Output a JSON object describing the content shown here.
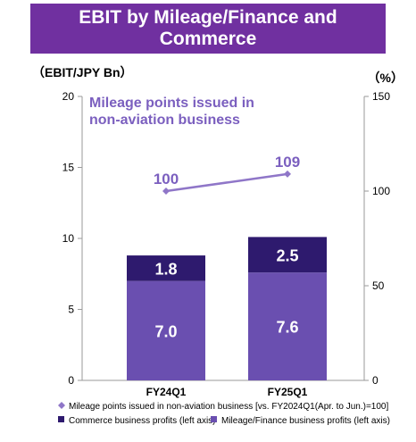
{
  "title": "EBIT by Mileage/Finance and Commerce",
  "colors": {
    "banner": "#7030a0",
    "mileage_finance": "#6a4fb0",
    "commerce": "#2e1a6e",
    "line": "#8f76c8",
    "annotation": "#7b5fbf",
    "axis": "#9a9a9a"
  },
  "chart_data": {
    "type": "bar",
    "stacked": true,
    "title": "EBIT by Mileage/Finance and Commerce",
    "categories": [
      "FY24Q1",
      "FY25Q1"
    ],
    "y_axis_left": {
      "label": "（EBIT/JPY Bn）",
      "range": [
        0,
        20
      ],
      "ticks": [
        "0",
        "5",
        "10",
        "15",
        "20"
      ]
    },
    "y_axis_right": {
      "label": "（%）",
      "range": [
        0,
        150
      ],
      "ticks": [
        "0",
        "50",
        "100",
        "150"
      ]
    },
    "series": [
      {
        "name": "Mileage/Finance business profits (left axis)",
        "type": "bar",
        "axis": "left",
        "values": [
          7.0,
          7.6
        ],
        "labels": [
          "7.0",
          "7.6"
        ]
      },
      {
        "name": "Commerce business profits (left axis)",
        "type": "bar",
        "axis": "left",
        "values": [
          1.8,
          2.5
        ],
        "labels": [
          "1.8",
          "2.5"
        ]
      },
      {
        "name": "Mileage points issued in non-aviation business [vs. FY2024Q1(Apr. to Jun.)=100]",
        "type": "line",
        "axis": "right",
        "values": [
          100,
          109
        ],
        "labels": [
          "100",
          "109"
        ]
      }
    ],
    "annotation": [
      "Mileage points issued in",
      "non-aviation business"
    ],
    "legend_placement": "bottom",
    "grid": false
  }
}
